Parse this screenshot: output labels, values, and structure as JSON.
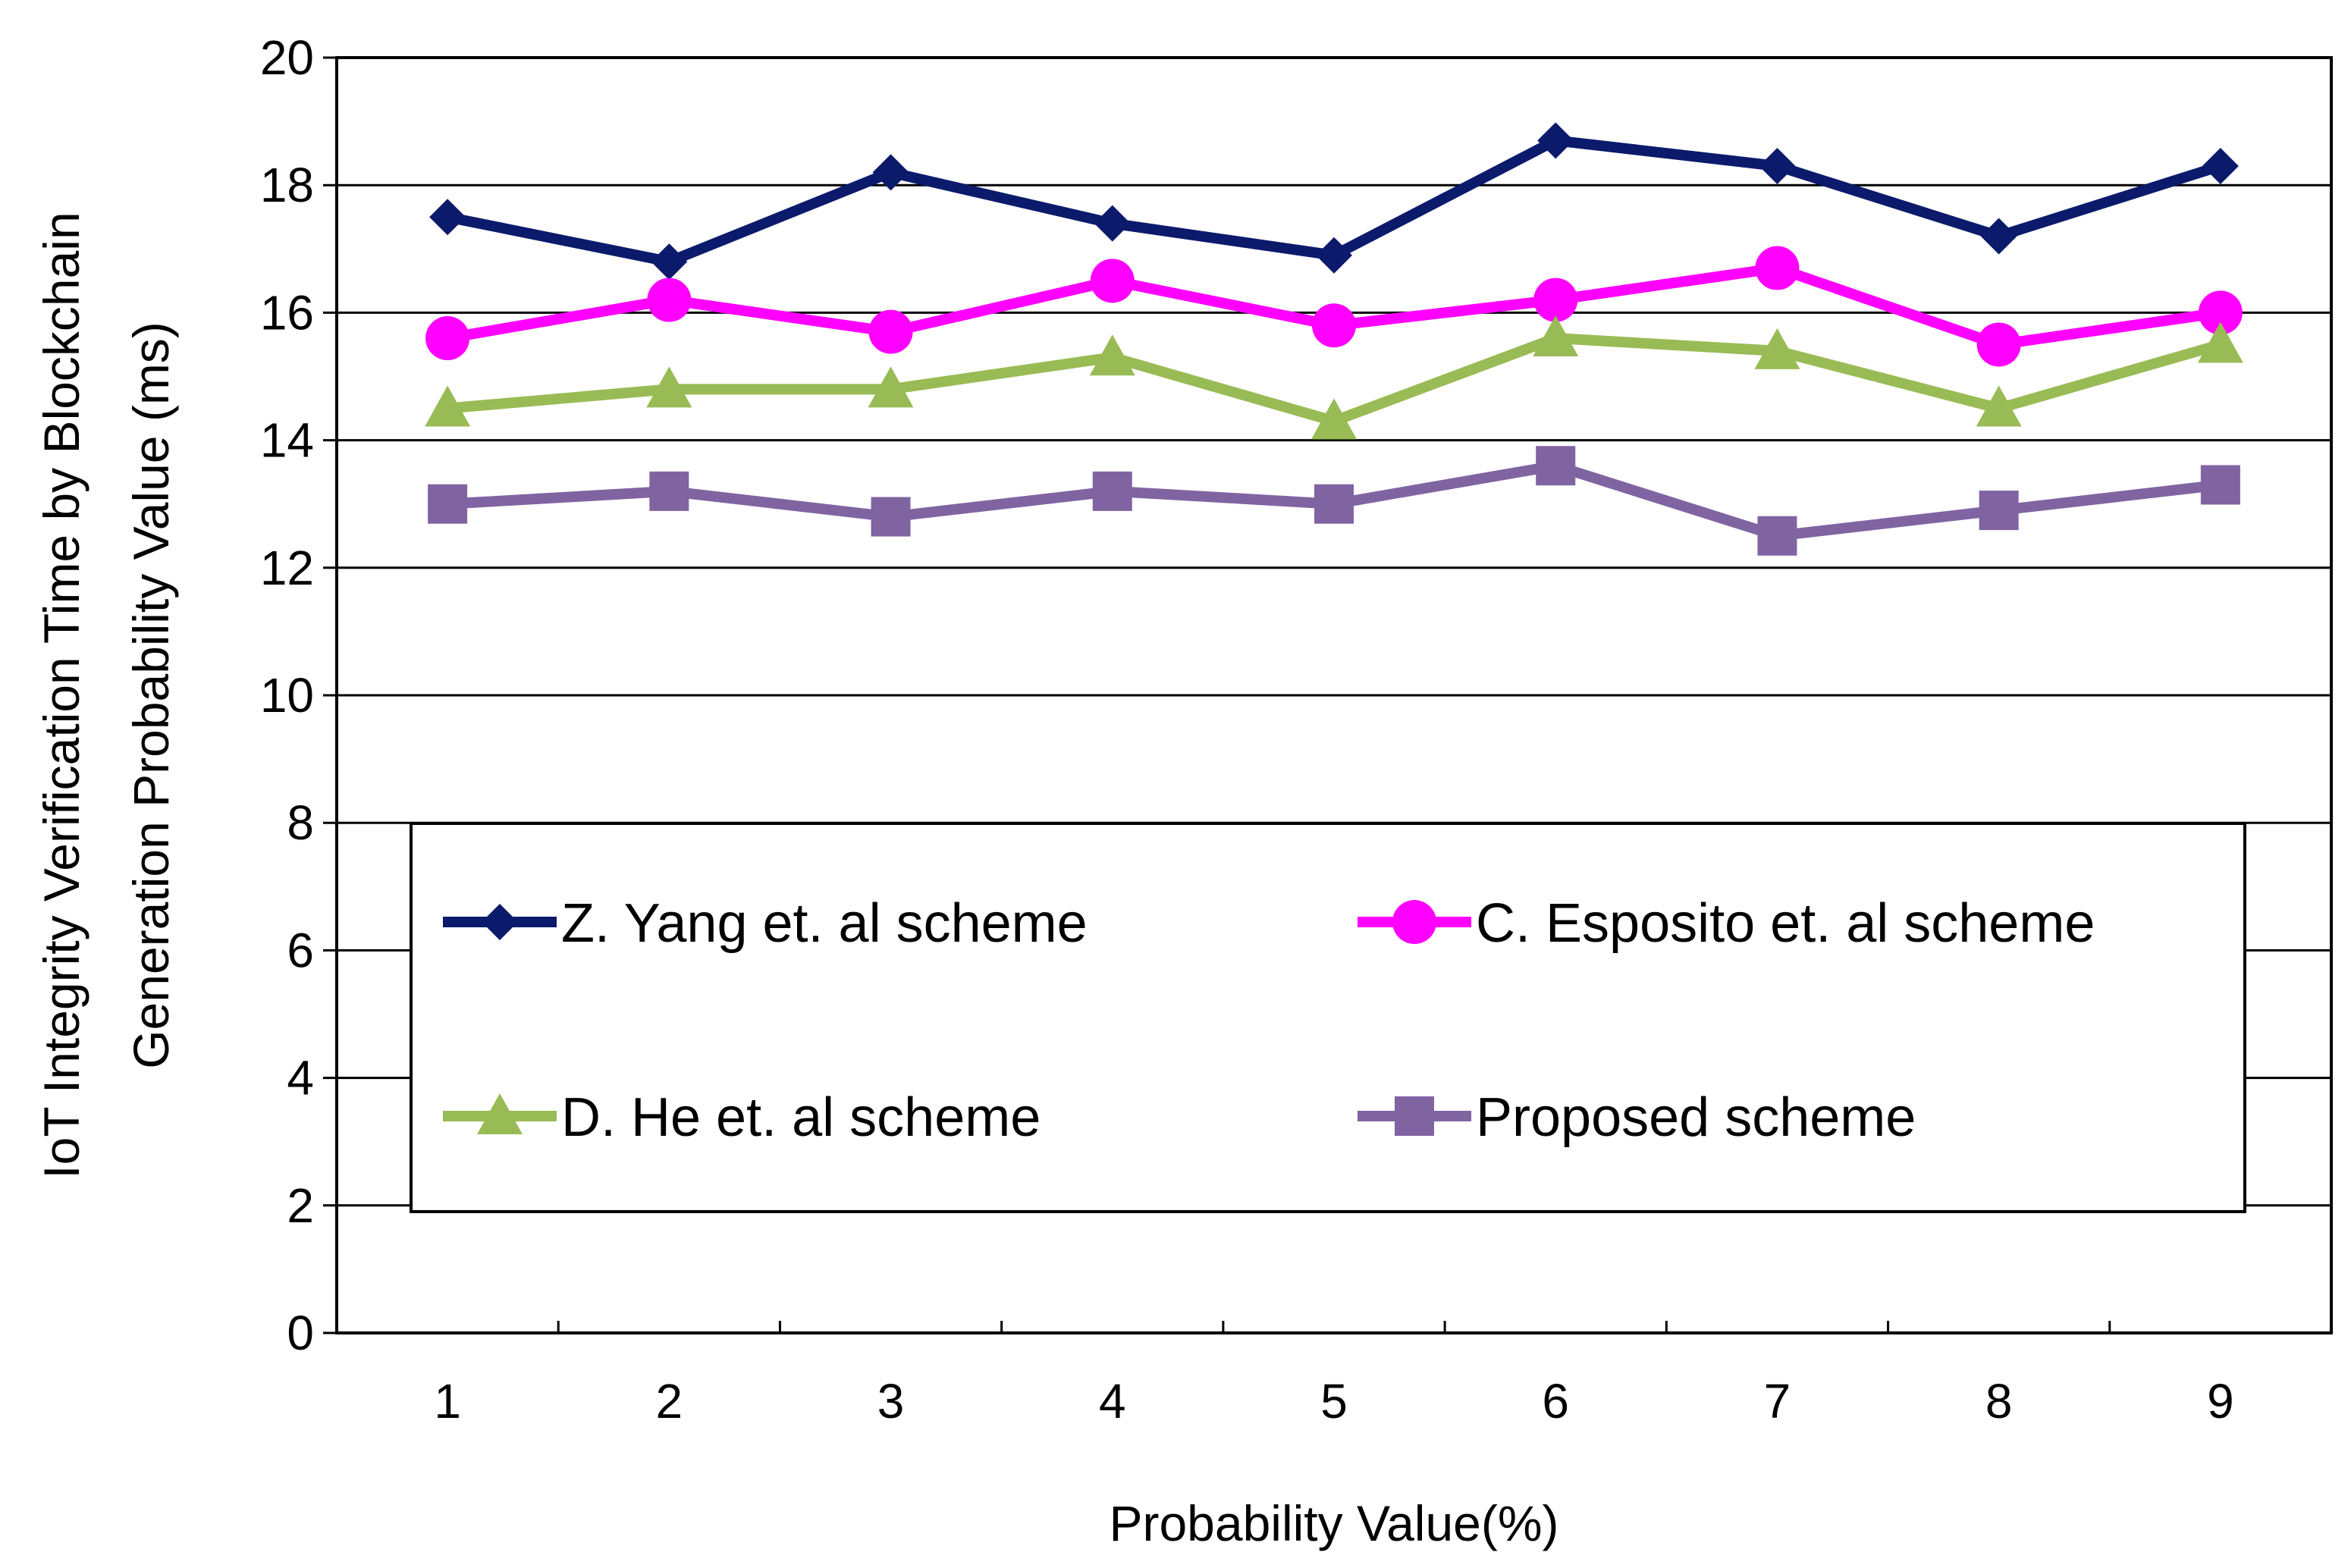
{
  "chart_data": {
    "type": "line",
    "title": "",
    "xlabel": "Probability Value(%)",
    "ylabel_lines": [
      "IoT Integrity Verification Time by Blockchain",
      "Generation Probability Value (ms)"
    ],
    "categories": [
      "1",
      "2",
      "3",
      "4",
      "5",
      "6",
      "7",
      "8",
      "9"
    ],
    "ylim": [
      0,
      20
    ],
    "yticks": [
      0,
      2,
      4,
      6,
      8,
      10,
      12,
      14,
      16,
      18,
      20
    ],
    "grid": true,
    "legend_position": "center-bottom",
    "series": [
      {
        "name": "Z. Yang et. al scheme",
        "color": "#0b1a6b",
        "marker": "diamond",
        "values": [
          17.5,
          16.8,
          18.2,
          17.4,
          16.9,
          18.7,
          18.3,
          17.2,
          18.3
        ]
      },
      {
        "name": "C. Esposito et. al scheme",
        "color": "#ff00ff",
        "marker": "circle",
        "values": [
          15.6,
          16.2,
          15.7,
          16.5,
          15.8,
          16.2,
          16.7,
          15.5,
          16.0
        ]
      },
      {
        "name": "D. He et. al scheme",
        "color": "#99bb55",
        "marker": "triangle",
        "values": [
          14.5,
          14.8,
          14.8,
          15.3,
          14.3,
          15.6,
          15.4,
          14.5,
          15.5
        ]
      },
      {
        "name": "Proposed scheme",
        "color": "#8064a2",
        "marker": "square",
        "values": [
          13.0,
          13.2,
          12.8,
          13.2,
          13.0,
          13.6,
          12.5,
          12.9,
          13.3
        ]
      }
    ]
  }
}
